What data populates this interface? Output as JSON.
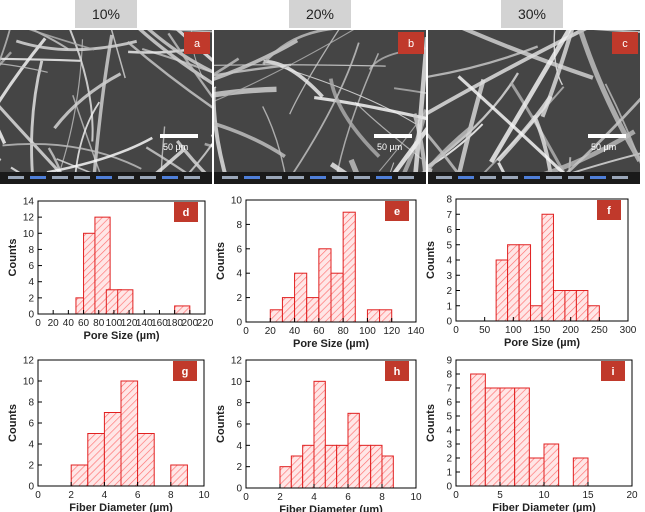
{
  "column_headers": [
    "10%",
    "20%",
    "30%"
  ],
  "sem_images": [
    {
      "panel": "a",
      "scale_label": "50 µm"
    },
    {
      "panel": "b",
      "scale_label": "50 µm"
    },
    {
      "panel": "c",
      "scale_label": "50 µm"
    }
  ],
  "colors": {
    "bar_fill": "#ffe6e6",
    "bar_stroke": "#e02020",
    "hatch": "#ff6f6f",
    "badge": "#c0392b",
    "header_bg": "#d3d3d3"
  },
  "chart_data": [
    {
      "panel": "d",
      "type": "bar",
      "xlabel": "Pore Size (µm)",
      "ylabel": "Counts",
      "xlim": [
        0,
        220
      ],
      "ylim": [
        0,
        14
      ],
      "bin_width": 20,
      "xticks": [
        0,
        20,
        40,
        60,
        80,
        100,
        120,
        140,
        160,
        180,
        200,
        220
      ],
      "yticks": [
        0,
        2,
        4,
        6,
        8,
        10,
        12,
        14
      ],
      "bins": [
        {
          "x": 60,
          "count": 2
        },
        {
          "x": 70,
          "count": 10
        },
        {
          "x": 85,
          "count": 12
        },
        {
          "x": 100,
          "count": 3
        },
        {
          "x": 115,
          "count": 3
        },
        {
          "x": 190,
          "count": 1
        }
      ]
    },
    {
      "panel": "e",
      "type": "bar",
      "xlabel": "Pore Size (µm)",
      "ylabel": "Counts",
      "xlim": [
        0,
        140
      ],
      "ylim": [
        0,
        10
      ],
      "bin_width": 10,
      "xticks": [
        0,
        20,
        40,
        60,
        80,
        100,
        120,
        140
      ],
      "yticks": [
        0,
        2,
        4,
        6,
        8,
        10
      ],
      "bins": [
        {
          "x": 25,
          "count": 1
        },
        {
          "x": 35,
          "count": 2
        },
        {
          "x": 45,
          "count": 4
        },
        {
          "x": 55,
          "count": 2
        },
        {
          "x": 65,
          "count": 6
        },
        {
          "x": 75,
          "count": 4
        },
        {
          "x": 85,
          "count": 9
        },
        {
          "x": 105,
          "count": 1
        },
        {
          "x": 115,
          "count": 1
        }
      ]
    },
    {
      "panel": "f",
      "type": "bar",
      "xlabel": "Pore Size (µm)",
      "ylabel": "Counts",
      "xlim": [
        0,
        300
      ],
      "ylim": [
        0,
        8
      ],
      "bin_width": 20,
      "xticks": [
        0,
        50,
        100,
        150,
        200,
        250,
        300
      ],
      "yticks": [
        0,
        1,
        2,
        3,
        4,
        5,
        6,
        7,
        8
      ],
      "bins": [
        {
          "x": 80,
          "count": 4
        },
        {
          "x": 100,
          "count": 5
        },
        {
          "x": 120,
          "count": 5
        },
        {
          "x": 140,
          "count": 1
        },
        {
          "x": 160,
          "count": 7
        },
        {
          "x": 180,
          "count": 2
        },
        {
          "x": 200,
          "count": 2
        },
        {
          "x": 220,
          "count": 2
        },
        {
          "x": 240,
          "count": 1
        }
      ]
    },
    {
      "panel": "g",
      "type": "bar",
      "xlabel": "Fiber Diameter (µm)",
      "ylabel": "Counts",
      "xlim": [
        0,
        10
      ],
      "ylim": [
        0,
        12
      ],
      "bin_width": 1,
      "xticks": [
        0,
        2,
        4,
        6,
        8,
        10
      ],
      "yticks": [
        0,
        2,
        4,
        6,
        8,
        10,
        12
      ],
      "bins": [
        {
          "x": 2.5,
          "count": 2
        },
        {
          "x": 3.5,
          "count": 5
        },
        {
          "x": 4.5,
          "count": 7
        },
        {
          "x": 5.5,
          "count": 10
        },
        {
          "x": 6.5,
          "count": 5
        },
        {
          "x": 8.5,
          "count": 2
        }
      ]
    },
    {
      "panel": "h",
      "type": "bar",
      "xlabel": "Fiber Diameter (µm)",
      "ylabel": "Counts",
      "xlim": [
        0,
        10
      ],
      "ylim": [
        0,
        12
      ],
      "bin_width": 0.6667,
      "xticks": [
        0,
        2,
        4,
        6,
        8,
        10
      ],
      "yticks": [
        0,
        2,
        4,
        6,
        8,
        10,
        12
      ],
      "bins": [
        {
          "x": 2.333,
          "count": 2
        },
        {
          "x": 3.0,
          "count": 3
        },
        {
          "x": 3.667,
          "count": 4
        },
        {
          "x": 4.333,
          "count": 10
        },
        {
          "x": 5.0,
          "count": 4
        },
        {
          "x": 5.667,
          "count": 4
        },
        {
          "x": 6.333,
          "count": 7
        },
        {
          "x": 7.0,
          "count": 4
        },
        {
          "x": 7.667,
          "count": 4
        },
        {
          "x": 8.333,
          "count": 3
        }
      ]
    },
    {
      "panel": "i",
      "type": "bar",
      "xlabel": "Fiber Diameter (µm)",
      "ylabel": "Counts",
      "xlim": [
        0,
        20
      ],
      "ylim": [
        0,
        9
      ],
      "bin_width": 1.667,
      "xticks": [
        0,
        5,
        10,
        15,
        20
      ],
      "yticks": [
        0,
        1,
        2,
        3,
        4,
        5,
        6,
        7,
        8,
        9
      ],
      "bins": [
        {
          "x": 2.5,
          "count": 8
        },
        {
          "x": 4.167,
          "count": 7
        },
        {
          "x": 5.833,
          "count": 7
        },
        {
          "x": 7.5,
          "count": 7
        },
        {
          "x": 9.167,
          "count": 2
        },
        {
          "x": 10.833,
          "count": 3
        },
        {
          "x": 14.167,
          "count": 2
        }
      ]
    }
  ]
}
